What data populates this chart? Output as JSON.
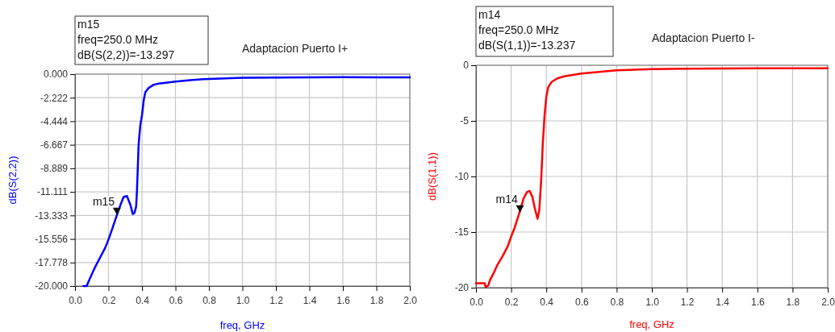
{
  "chart_data": [
    {
      "type": "line",
      "title": "Adaptacion Puerto I+",
      "xlabel": "freq, GHz",
      "ylabel": "dB(S(2,2))",
      "xlim": [
        0,
        2
      ],
      "xticks": [
        {
          "value": 0,
          "label": "0.0"
        },
        0.2,
        0.4,
        0.6,
        0.8,
        {
          "value": 1,
          "label": "1.0"
        },
        1.2,
        1.4,
        1.6,
        1.8,
        {
          "value": 2,
          "label": "2.0"
        }
      ],
      "ylim": [
        -20,
        0
      ],
      "yticks": [
        {
          "value": 0,
          "label": "0.000"
        },
        -2.222,
        -4.444,
        -6.667,
        -8.889,
        -11.111,
        -13.333,
        -15.556,
        -17.778,
        {
          "value": -20,
          "label": "-20.000"
        }
      ],
      "grid": true,
      "annotations": [
        "m15",
        "freq=250.0 MHz",
        "dB(S(2,2))=-13.297",
        {
          "text": "m15",
          "x": 0.25,
          "y": -13.297
        }
      ],
      "series": [
        {
          "color": "#0000ff",
          "x": [
            0.05,
            0.07,
            0.08,
            0.1,
            0.12,
            0.15,
            0.18,
            0.2,
            0.22,
            0.25,
            0.27,
            0.29,
            0.31,
            0.33,
            0.345,
            0.355,
            0.365,
            0.37,
            0.38,
            0.39,
            0.4,
            0.41,
            0.42,
            0.44,
            0.47,
            0.5,
            0.6,
            0.7,
            0.8,
            1.0,
            1.2,
            1.4,
            1.6,
            1.8,
            2.0
          ],
          "values": [
            -20,
            -20,
            -19.6,
            -18.9,
            -18.2,
            -17.3,
            -16.4,
            -15.6,
            -14.7,
            -13.3,
            -12.4,
            -11.6,
            -11.5,
            -12.3,
            -13.2,
            -13.1,
            -12.5,
            -11,
            -6.6,
            -4.8,
            -3.9,
            -2.5,
            -1.7,
            -1.3,
            -1,
            -0.9,
            -0.7,
            -0.55,
            -0.45,
            -0.35,
            -0.32,
            -0.3,
            -0.28,
            -0.3,
            -0.3
          ]
        }
      ]
    },
    {
      "type": "line",
      "title": "Adaptacion Puerto I-",
      "xlabel": "freq, GHz",
      "ylabel": "dB(S(1,1))",
      "xlim": [
        0,
        2
      ],
      "xticks": [
        {
          "value": 0,
          "label": "0.0"
        },
        0.2,
        0.4,
        0.6,
        0.8,
        {
          "value": 1,
          "label": "1.0"
        },
        1.2,
        1.4,
        1.6,
        1.8,
        {
          "value": 2,
          "label": "2.0"
        }
      ],
      "ylim": [
        -20,
        0
      ],
      "yticks": [
        0,
        -5,
        -10,
        -15,
        -20
      ],
      "grid": true,
      "annotations": [
        "m14",
        "freq=250.0 MHz",
        "dB(S(1,1))=-13.237",
        {
          "text": "m14",
          "x": 0.25,
          "y": -13.237
        }
      ],
      "series": [
        {
          "color": "#ff0000",
          "x": [
            0,
            0.05,
            0.055,
            0.07,
            0.08,
            0.1,
            0.12,
            0.15,
            0.18,
            0.2,
            0.22,
            0.25,
            0.27,
            0.29,
            0.305,
            0.32,
            0.335,
            0.35,
            0.36,
            0.37,
            0.38,
            0.39,
            0.4,
            0.41,
            0.43,
            0.46,
            0.5,
            0.6,
            0.8,
            1.0,
            1.2,
            1.6,
            2.0
          ],
          "values": [
            -19.6,
            -19.6,
            -19.95,
            -19.8,
            -19.3,
            -18.7,
            -18,
            -17.2,
            -16.3,
            -15.4,
            -14.6,
            -13.1,
            -12,
            -11.4,
            -11.3,
            -11.8,
            -12.9,
            -13.8,
            -13,
            -10.5,
            -7,
            -4.5,
            -2.8,
            -2,
            -1.5,
            -1.2,
            -1,
            -0.75,
            -0.45,
            -0.35,
            -0.3,
            -0.28,
            -0.28
          ]
        }
      ]
    }
  ]
}
